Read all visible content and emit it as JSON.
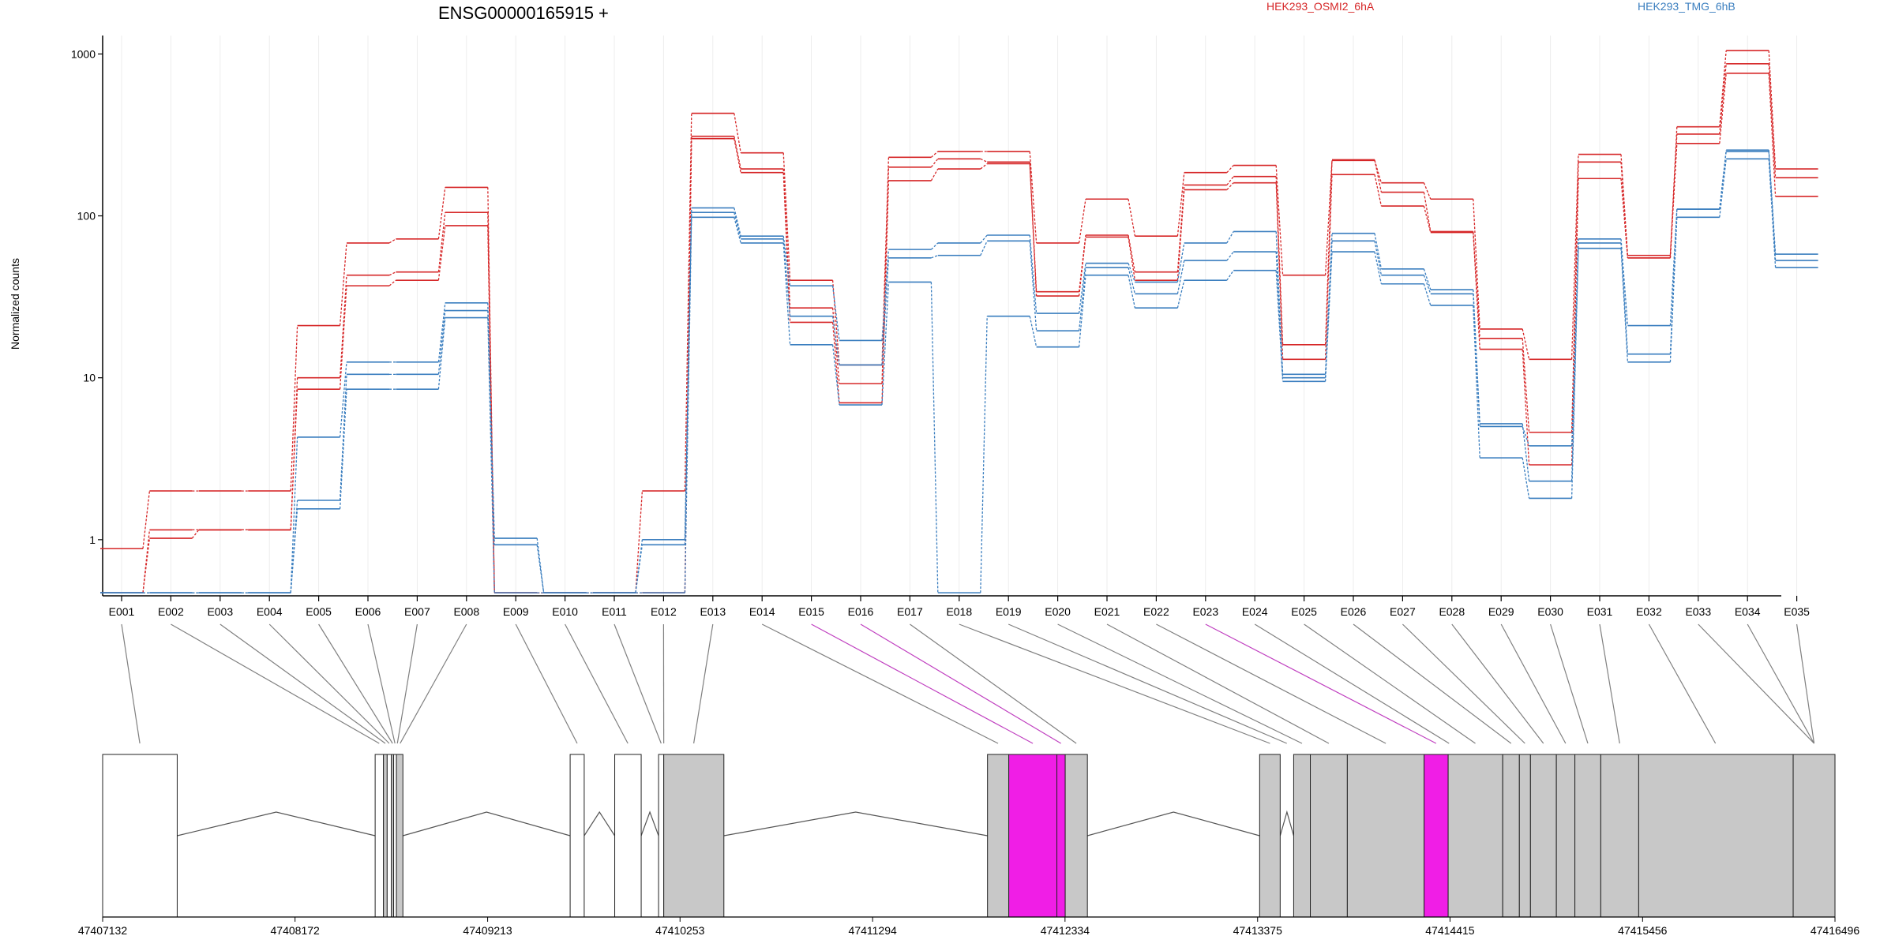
{
  "chart_data": {
    "type": "line",
    "title": "ENSG00000165915 +",
    "ylabel": "Normalized counts",
    "y_scale": "log",
    "ylim": [
      0.45,
      1300
    ],
    "yticks": [
      1,
      10,
      100,
      1000
    ],
    "ytick_labels": [
      "1",
      "10",
      "100",
      "1000"
    ],
    "grid": true,
    "legend_placement": "top",
    "exons": [
      "E001",
      "E002",
      "E003",
      "E004",
      "E005",
      "E006",
      "E007",
      "E008",
      "E009",
      "E010",
      "E011",
      "E012",
      "E013",
      "E014",
      "E015",
      "E016",
      "E017",
      "E018",
      "E019",
      "E020",
      "E021",
      "E022",
      "E023",
      "E024",
      "E025",
      "E026",
      "E027",
      "E028",
      "E029",
      "E030",
      "E031",
      "E032",
      "E033",
      "E034",
      "E035"
    ],
    "groups": [
      {
        "name": "HEK293_OSMI2_6hA",
        "color": "#d62728"
      },
      {
        "name": "HEK293_TMG_6hB",
        "color": "#3a7ebf"
      }
    ],
    "series": [
      {
        "group": "HEK293_OSMI2_6hA",
        "values": [
          0.88,
          2,
          2,
          2,
          21,
          68,
          72,
          150,
          0.47,
          0.47,
          0.47,
          2,
          430,
          245,
          40,
          12,
          230,
          250,
          250,
          68,
          127,
          75,
          185,
          205,
          43,
          220,
          160,
          127,
          20,
          13,
          240,
          57,
          355,
          1050,
          195
        ]
      },
      {
        "group": "HEK293_OSMI2_6hA",
        "values": [
          0.47,
          1.02,
          1.15,
          1.15,
          10,
          43,
          45,
          105,
          0.47,
          0.47,
          0.47,
          0.47,
          310,
          195,
          27,
          9.2,
          200,
          225,
          215,
          34,
          76,
          45,
          155,
          175,
          16,
          222,
          140,
          80,
          17.5,
          4.6,
          215,
          55,
          320,
          870,
          172
        ]
      },
      {
        "group": "HEK293_OSMI2_6hA",
        "values": [
          0.47,
          1.15,
          1.15,
          1.15,
          8.5,
          37,
          40,
          87,
          0.47,
          0.47,
          0.47,
          0.47,
          300,
          185,
          22,
          7,
          165,
          195,
          210,
          32,
          74,
          40,
          145,
          160,
          13,
          180,
          115,
          79,
          15,
          2.9,
          170,
          55,
          280,
          760,
          132
        ]
      },
      {
        "group": "HEK293_TMG_6hB",
        "values": [
          0.47,
          0.47,
          0.47,
          0.47,
          4.3,
          12.5,
          12.5,
          29,
          1.02,
          0.47,
          0.47,
          1,
          112,
          75,
          37,
          17,
          62,
          68,
          76,
          25,
          51,
          39,
          68,
          80,
          10.5,
          78,
          47,
          35,
          5,
          3.8,
          72,
          21,
          110,
          255,
          58
        ]
      },
      {
        "group": "HEK293_TMG_6hB",
        "values": [
          0.47,
          0.47,
          0.47,
          0.47,
          1.75,
          10.5,
          10.5,
          26,
          0.93,
          0.47,
          0.47,
          0.93,
          105,
          72,
          24,
          12,
          55,
          57,
          70,
          19.5,
          48,
          33,
          53,
          60,
          10,
          70,
          43,
          33,
          5.2,
          2.3,
          68,
          14,
          110,
          250,
          53
        ]
      },
      {
        "group": "HEK293_TMG_6hB",
        "values": [
          0.47,
          0.47,
          0.47,
          0.47,
          1.55,
          8.5,
          8.5,
          23.5,
          0.47,
          0.47,
          0.47,
          0.47,
          98,
          68,
          16,
          6.8,
          39,
          0.47,
          24,
          15.5,
          43,
          27,
          40,
          46,
          9.5,
          60,
          38,
          28,
          3.2,
          1.8,
          63,
          12.5,
          98,
          225,
          48
        ]
      }
    ],
    "genomic_axis": {
      "ticks": [
        47407132,
        47408172,
        47409213,
        47410253,
        47411294,
        47412334,
        47413375,
        47414415,
        47415456,
        47416496
      ],
      "tick_labels": [
        "47407132",
        "47408172",
        "47409213",
        "47410253",
        "47411294",
        "47412334",
        "47413375",
        "47414415",
        "47415456",
        "47416496"
      ],
      "range": [
        47407132,
        47416496
      ]
    },
    "exon_blocks": [
      {
        "start": 47407132,
        "end": 47407535,
        "fill": "#ffffff"
      },
      {
        "start": 47408605,
        "end": 47408650,
        "fill": "#ffffff"
      },
      {
        "start": 47408650,
        "end": 47408670,
        "fill": "#c8c8c8"
      },
      {
        "start": 47408670,
        "end": 47408693,
        "fill": "#ffffff"
      },
      {
        "start": 47408693,
        "end": 47408705,
        "fill": "#c8c8c8"
      },
      {
        "start": 47408705,
        "end": 47408720,
        "fill": "#ffffff"
      },
      {
        "start": 47408720,
        "end": 47408755,
        "fill": "#c8c8c8"
      },
      {
        "start": 47409659,
        "end": 47409735,
        "fill": "#ffffff"
      },
      {
        "start": 47409900,
        "end": 47410043,
        "fill": "#ffffff"
      },
      {
        "start": 47410137,
        "end": 47410165,
        "fill": "#ffffff"
      },
      {
        "start": 47410165,
        "end": 47410490,
        "fill": "#c8c8c8"
      },
      {
        "start": 47411915,
        "end": 47412030,
        "fill": "#c8c8c8"
      },
      {
        "start": 47412030,
        "end": 47412290,
        "fill": "#f01ee6"
      },
      {
        "start": 47412290,
        "end": 47412335,
        "fill": "#f01ee6"
      },
      {
        "start": 47412335,
        "end": 47412455,
        "fill": "#c8c8c8"
      },
      {
        "start": 47413386,
        "end": 47413497,
        "fill": "#c8c8c8"
      },
      {
        "start": 47413570,
        "end": 47413660,
        "fill": "#c8c8c8"
      },
      {
        "start": 47413660,
        "end": 47413860,
        "fill": "#c8c8c8"
      },
      {
        "start": 47413860,
        "end": 47414275,
        "fill": "#c8c8c8"
      },
      {
        "start": 47414275,
        "end": 47414405,
        "fill": "#f01ee6"
      },
      {
        "start": 47414405,
        "end": 47414700,
        "fill": "#c8c8c8"
      },
      {
        "start": 47414700,
        "end": 47414790,
        "fill": "#c8c8c8"
      },
      {
        "start": 47414790,
        "end": 47414850,
        "fill": "#c8c8c8"
      },
      {
        "start": 47414850,
        "end": 47414990,
        "fill": "#c8c8c8"
      },
      {
        "start": 47414990,
        "end": 47415090,
        "fill": "#c8c8c8"
      },
      {
        "start": 47415090,
        "end": 47415230,
        "fill": "#c8c8c8"
      },
      {
        "start": 47415230,
        "end": 47415435,
        "fill": "#c8c8c8"
      },
      {
        "start": 47415435,
        "end": 47416270,
        "fill": "#c8c8c8"
      },
      {
        "start": 47416270,
        "end": 47416496,
        "fill": "#c8c8c8"
      }
    ],
    "introns": [
      [
        47407535,
        47408605
      ],
      [
        47408755,
        47409659
      ],
      [
        47409735,
        47409900
      ],
      [
        47410043,
        47410137
      ],
      [
        47410490,
        47411915
      ],
      [
        47412455,
        47413386
      ],
      [
        47413497,
        47413570
      ]
    ],
    "exon_connectors": [
      {
        "exon": "E001",
        "pos": 47407333,
        "color": "#808080"
      },
      {
        "exon": "E002",
        "pos": 47408627,
        "color": "#808080"
      },
      {
        "exon": "E003",
        "pos": 47408660,
        "color": "#808080"
      },
      {
        "exon": "E004",
        "pos": 47408681,
        "color": "#808080"
      },
      {
        "exon": "E005",
        "pos": 47408699,
        "color": "#808080"
      },
      {
        "exon": "E006",
        "pos": 47408712,
        "color": "#808080"
      },
      {
        "exon": "E007",
        "pos": 47408725,
        "color": "#808080"
      },
      {
        "exon": "E008",
        "pos": 47408740,
        "color": "#808080"
      },
      {
        "exon": "E009",
        "pos": 47409697,
        "color": "#808080"
      },
      {
        "exon": "E010",
        "pos": 47409971,
        "color": "#808080"
      },
      {
        "exon": "E011",
        "pos": 47410151,
        "color": "#808080"
      },
      {
        "exon": "E012",
        "pos": 47410165,
        "color": "#808080"
      },
      {
        "exon": "E013",
        "pos": 47410327,
        "color": "#808080"
      },
      {
        "exon": "E014",
        "pos": 47411972,
        "color": "#808080"
      },
      {
        "exon": "E015",
        "pos": 47412160,
        "color": "#c040c0"
      },
      {
        "exon": "E016",
        "pos": 47412312,
        "color": "#c040c0"
      },
      {
        "exon": "E017",
        "pos": 47412395,
        "color": "#808080"
      },
      {
        "exon": "E018",
        "pos": 47413442,
        "color": "#808080"
      },
      {
        "exon": "E019",
        "pos": 47413533,
        "color": "#808080"
      },
      {
        "exon": "E020",
        "pos": 47413615,
        "color": "#808080"
      },
      {
        "exon": "E021",
        "pos": 47413760,
        "color": "#808080"
      },
      {
        "exon": "E022",
        "pos": 47414068,
        "color": "#808080"
      },
      {
        "exon": "E023",
        "pos": 47414340,
        "color": "#c040c0"
      },
      {
        "exon": "E024",
        "pos": 47414410,
        "color": "#808080"
      },
      {
        "exon": "E025",
        "pos": 47414552,
        "color": "#808080"
      },
      {
        "exon": "E026",
        "pos": 47414745,
        "color": "#808080"
      },
      {
        "exon": "E027",
        "pos": 47414820,
        "color": "#808080"
      },
      {
        "exon": "E028",
        "pos": 47414920,
        "color": "#808080"
      },
      {
        "exon": "E029",
        "pos": 47415040,
        "color": "#808080"
      },
      {
        "exon": "E030",
        "pos": 47415160,
        "color": "#808080"
      },
      {
        "exon": "E031",
        "pos": 47415332,
        "color": "#808080"
      },
      {
        "exon": "E032",
        "pos": 47415850,
        "color": "#808080"
      },
      {
        "exon": "E033",
        "pos": 47416383,
        "color": "#808080"
      },
      {
        "exon": "E034",
        "pos": 47416383,
        "color": "#808080"
      },
      {
        "exon": "E035",
        "pos": 47416383,
        "color": "#808080"
      }
    ]
  }
}
